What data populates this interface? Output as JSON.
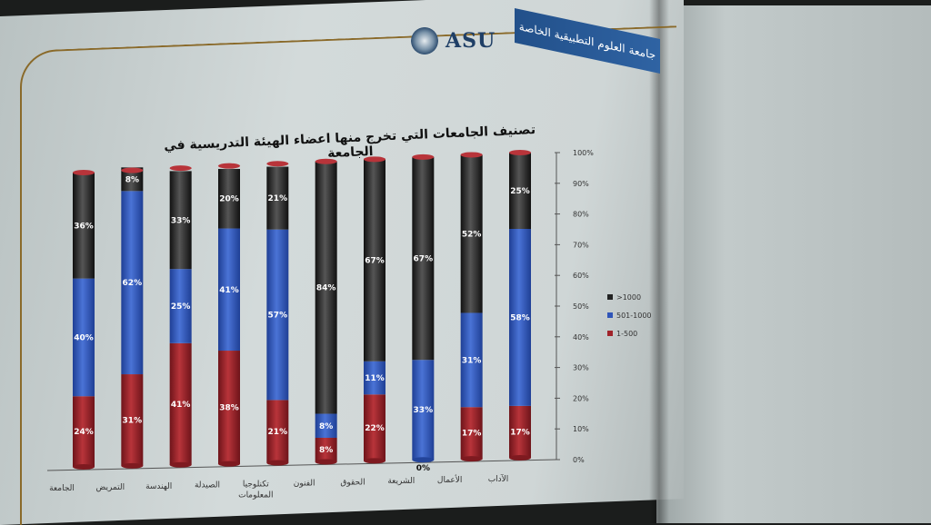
{
  "header": {
    "logo_text": "ASU",
    "ribbon_text": "جامعة العلوم التطبيقية الخاصة"
  },
  "colors": {
    "red": "#a0232a",
    "blue": "#2f55b8",
    "black": "#222222"
  },
  "chart_data": {
    "type": "bar",
    "stacked": true,
    "title": "تصنيف الجامعات التي تخرج منها اعضاء الهيئة التدريسية في الجامعة",
    "categories": [
      "الجامعة",
      "التمريض",
      "الهندسة",
      "الصيدلة",
      "تكنلوجيا المعلومات",
      "الفنون",
      "الحقوق",
      "الشريعة",
      "الأعمال",
      "الآداب"
    ],
    "series": [
      {
        "name": "1-500",
        "values": [
          24,
          31,
          41,
          38,
          21,
          8,
          22,
          0,
          17,
          17
        ],
        "labels": [
          "24%",
          "31%",
          "41%",
          "38%",
          "21%",
          "8%",
          "22%",
          "0%",
          "17%",
          "17%"
        ]
      },
      {
        "name": "501-1000",
        "values": [
          40,
          62,
          25,
          41,
          57,
          8,
          11,
          33,
          31,
          58
        ],
        "labels": [
          "40%",
          "62%",
          "25%",
          "41%",
          "57%",
          "8%",
          "11%",
          "33%",
          "31%",
          "58%"
        ]
      },
      {
        "name": ">1000",
        "values": [
          36,
          8,
          33,
          20,
          21,
          84,
          67,
          67,
          52,
          25
        ],
        "labels": [
          "36%",
          "8%",
          "33%",
          "20%",
          "21%",
          "84%",
          "67%",
          "67%",
          "52%",
          "25%"
        ]
      }
    ],
    "y_ticks": [
      "0%",
      "10%",
      "20%",
      "30%",
      "40%",
      "50%",
      "60%",
      "70%",
      "80%",
      "90%",
      "100%"
    ],
    "ylim": [
      0,
      100
    ],
    "legend": {
      "position": "right",
      "entries": [
        ">1000",
        "501-1000",
        "1-500"
      ]
    }
  }
}
